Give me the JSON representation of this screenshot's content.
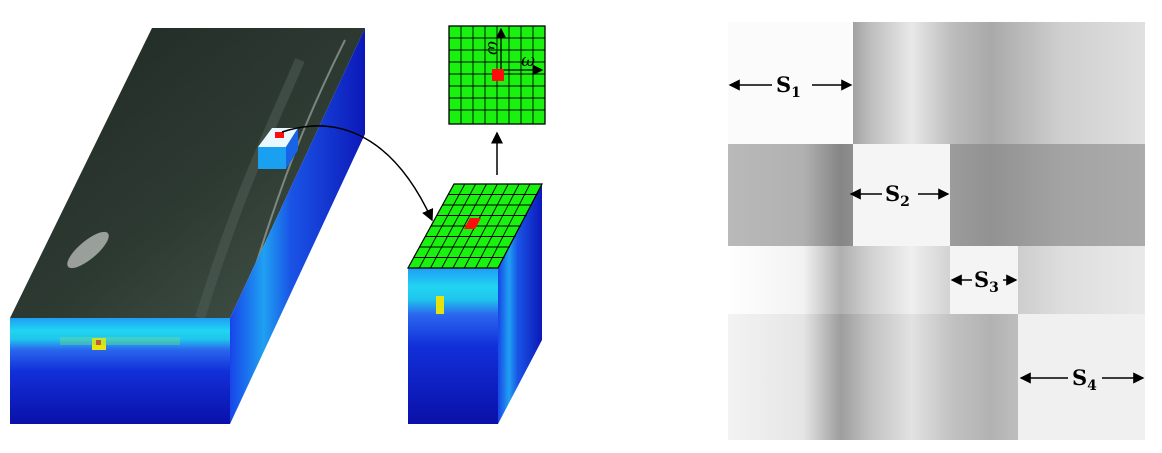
{
  "left_figure": {
    "kernel_labels": {
      "vertical": "ω",
      "horizontal": "ω"
    }
  },
  "right_figure": {
    "segments": [
      {
        "base": "S",
        "sub": "1"
      },
      {
        "base": "S",
        "sub": "2"
      },
      {
        "base": "S",
        "sub": "3"
      },
      {
        "base": "S",
        "sub": "4"
      }
    ]
  },
  "colors": {
    "patch_green": "#19f20f",
    "center_red": "#ff0d0d",
    "spectral_blue": "#0a1ccc",
    "spectral_cyan": "#12c8ee",
    "spectral_yellow": "#f0e30c"
  }
}
